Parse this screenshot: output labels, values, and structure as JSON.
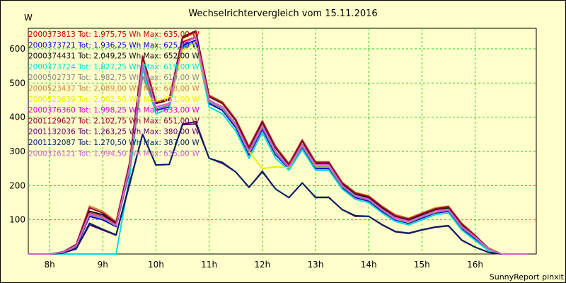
{
  "chart_data": {
    "type": "line",
    "title": "Wechselrichtervergleich vom 15.11.2016",
    "ylabel": "W",
    "footer": "SunnyReport pinxit",
    "ylim": [
      0,
      660
    ],
    "xlim": [
      7.6,
      17.15
    ],
    "yticks": [
      100,
      200,
      300,
      400,
      500,
      600
    ],
    "xticks": [
      {
        "value": 8,
        "label": "8h"
      },
      {
        "value": 9,
        "label": "9h"
      },
      {
        "value": 10,
        "label": "10h"
      },
      {
        "value": 11,
        "label": "11h"
      },
      {
        "value": 12,
        "label": "12h"
      },
      {
        "value": 13,
        "label": "13h"
      },
      {
        "value": 14,
        "label": "14h"
      },
      {
        "value": 15,
        "label": "15h"
      },
      {
        "value": 16,
        "label": "16h"
      }
    ],
    "grid": true,
    "legend_position": "top-left",
    "x": [
      7.6,
      7.75,
      8.0,
      8.25,
      8.5,
      8.75,
      9.0,
      9.25,
      9.5,
      9.75,
      10.0,
      10.25,
      10.5,
      10.75,
      11.0,
      11.25,
      11.5,
      11.75,
      12.0,
      12.25,
      12.5,
      12.75,
      13.0,
      13.25,
      13.5,
      13.75,
      14.0,
      14.25,
      14.5,
      14.75,
      15.0,
      15.25,
      15.5,
      15.75,
      16.0,
      16.25,
      16.5,
      16.75,
      17.0
    ],
    "series": [
      {
        "name": "2000373813",
        "label": "2000373813 Tot: 1.975,75 Wh Max: 635,00 W",
        "color": "#cc0000",
        "values": [
          0,
          0,
          0,
          5,
          25,
          120,
          110,
          85,
          250,
          560,
          430,
          440,
          620,
          635,
          450,
          430,
          380,
          300,
          375,
          300,
          255,
          320,
          260,
          260,
          200,
          170,
          160,
          130,
          105,
          95,
          110,
          125,
          130,
          80,
          50,
          15,
          0,
          0,
          0
        ]
      },
      {
        "name": "2000373721",
        "label": "2000373721 Tot: 1.936,25 Wh Max: 625,00 W",
        "color": "#0000cc",
        "values": [
          0,
          0,
          0,
          3,
          20,
          110,
          100,
          80,
          240,
          550,
          420,
          430,
          610,
          625,
          440,
          420,
          370,
          290,
          365,
          290,
          250,
          310,
          250,
          250,
          195,
          165,
          155,
          125,
          100,
          90,
          105,
          120,
          125,
          75,
          45,
          12,
          0,
          0,
          0
        ]
      },
      {
        "name": "2000374431",
        "label": "2000374431 Tot: 2.049,25 Wh Max: 652,00 W",
        "color": "#111111",
        "values": [
          0,
          0,
          0,
          5,
          25,
          125,
          115,
          90,
          260,
          575,
          440,
          450,
          635,
          652,
          460,
          440,
          390,
          310,
          385,
          310,
          260,
          330,
          265,
          265,
          205,
          175,
          165,
          135,
          110,
          100,
          115,
          130,
          135,
          85,
          52,
          15,
          0,
          0,
          0
        ]
      },
      {
        "name": "2000373724",
        "label": "2000373724 Tot: 1.827,25 Wh Max: 619,00 W",
        "color": "#00dddd",
        "values": [
          0,
          0,
          0,
          0,
          0,
          0,
          0,
          0,
          220,
          540,
          410,
          425,
          605,
          619,
          430,
          410,
          360,
          280,
          355,
          280,
          245,
          305,
          245,
          245,
          190,
          160,
          150,
          120,
          95,
          85,
          100,
          115,
          120,
          70,
          40,
          10,
          0,
          0,
          0
        ]
      },
      {
        "name": "2000502737",
        "label": "2000502737 Tot: 1.982,75 Wh Max: 619,00 W",
        "color": "#888888",
        "values": [
          0,
          0,
          0,
          4,
          22,
          115,
          105,
          82,
          245,
          520,
          425,
          435,
          600,
          619,
          445,
          425,
          375,
          295,
          370,
          295,
          252,
          315,
          255,
          255,
          198,
          168,
          158,
          128,
          102,
          92,
          108,
          122,
          128,
          78,
          48,
          14,
          0,
          0,
          0
        ]
      },
      {
        "name": "2000523437",
        "label": "2000523437 Tot: 2.089,00 Wh Max: 648,00 W",
        "color": "#cc8833",
        "values": [
          0,
          0,
          0,
          6,
          28,
          140,
          125,
          95,
          265,
          580,
          445,
          455,
          630,
          648,
          465,
          445,
          395,
          315,
          390,
          315,
          265,
          335,
          270,
          270,
          210,
          180,
          170,
          140,
          115,
          105,
          120,
          135,
          140,
          90,
          55,
          18,
          0,
          0,
          0
        ]
      },
      {
        "name": "2000523639",
        "label": "2000523639 Tot: 2.002,50 Wh Max: 621,00 W",
        "color": "#eeee00",
        "values": [
          0,
          0,
          0,
          5,
          24,
          118,
          108,
          84,
          250,
          560,
          430,
          440,
          595,
          621,
          450,
          430,
          380,
          300,
          250,
          255,
          252,
          320,
          258,
          258,
          200,
          170,
          160,
          130,
          104,
          94,
          110,
          124,
          130,
          80,
          50,
          14,
          0,
          0,
          0
        ]
      },
      {
        "name": "2000376360",
        "label": "2000376360 Tot: 1.998,25 Wh Max: 633,00 W",
        "color": "#dd00dd",
        "values": [
          0,
          0,
          0,
          5,
          24,
          118,
          108,
          84,
          250,
          555,
          430,
          440,
          615,
          633,
          450,
          430,
          380,
          300,
          375,
          300,
          255,
          320,
          260,
          260,
          200,
          170,
          160,
          130,
          105,
          95,
          110,
          125,
          130,
          80,
          50,
          15,
          0,
          0,
          0
        ]
      },
      {
        "name": "2001129627",
        "label": "2001129627 Tot: 2.102,75 Wh Max: 651,00 W",
        "color": "#990033",
        "values": [
          0,
          0,
          0,
          6,
          28,
          135,
          120,
          92,
          262,
          578,
          442,
          452,
          632,
          651,
          462,
          442,
          392,
          312,
          388,
          312,
          262,
          332,
          268,
          268,
          208,
          178,
          168,
          138,
          112,
          102,
          118,
          132,
          138,
          88,
          54,
          16,
          0,
          0,
          0
        ]
      },
      {
        "name": "2001132036",
        "label": "2001132036 Tot: 1.263,25 Wh Max: 380,00 W",
        "color": "#660066",
        "values": [
          0,
          0,
          0,
          3,
          15,
          85,
          70,
          55,
          200,
          350,
          260,
          262,
          378,
          380,
          280,
          265,
          240,
          195,
          240,
          190,
          165,
          208,
          165,
          165,
          130,
          110,
          110,
          85,
          65,
          60,
          70,
          78,
          82,
          40,
          20,
          5,
          0,
          0,
          0
        ]
      },
      {
        "name": "2001132087",
        "label": "2001132087 Tot: 1.270,50 Wh Max: 387,00 W",
        "color": "#002266",
        "values": [
          0,
          0,
          0,
          3,
          15,
          90,
          72,
          56,
          205,
          350,
          260,
          262,
          380,
          387,
          280,
          268,
          240,
          195,
          242,
          190,
          165,
          208,
          166,
          166,
          130,
          112,
          110,
          86,
          66,
          61,
          71,
          79,
          83,
          41,
          20,
          5,
          0,
          0,
          0
        ]
      },
      {
        "name": "2000316121",
        "label": "2000316121 Tot: 1.994,50 Wh Max: 635,00 W",
        "color": "#cc66cc",
        "values": [
          0,
          0,
          0,
          5,
          24,
          118,
          108,
          84,
          250,
          555,
          430,
          440,
          615,
          635,
          450,
          430,
          380,
          300,
          375,
          300,
          255,
          320,
          260,
          260,
          200,
          170,
          160,
          130,
          105,
          95,
          110,
          125,
          130,
          80,
          50,
          15,
          0,
          0,
          0
        ]
      }
    ]
  }
}
